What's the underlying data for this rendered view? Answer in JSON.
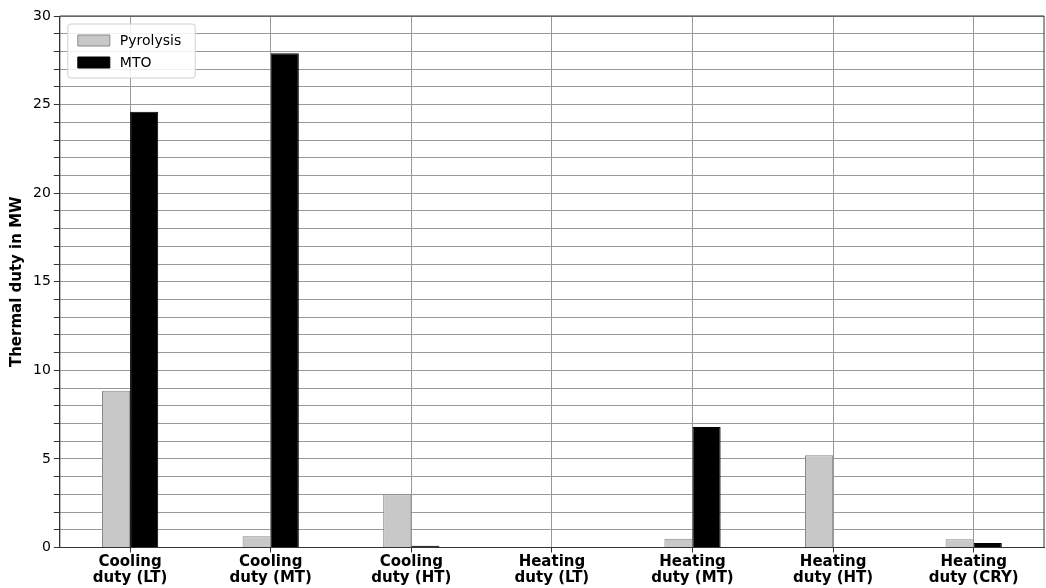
{
  "chart_data": {
    "type": "bar",
    "ylabel": "Thermal duty in MW",
    "categories": [
      "Cooling duty (LT)",
      "Cooling duty (MT)",
      "Cooling duty (HT)",
      "Heating duty (LT)",
      "Heating duty (MT)",
      "Heating duty (HT)",
      "Heating duty (CRY)"
    ],
    "series": [
      {
        "name": "Pyrolysis",
        "color": "#c8c8c8",
        "values": [
          8.85,
          0.63,
          3.0,
          null,
          0.5,
          5.2,
          0.47
        ]
      },
      {
        "name": "MTO",
        "color": "#000000",
        "values": [
          24.6,
          27.9,
          0.1,
          0,
          6.8,
          0,
          0.25
        ]
      }
    ],
    "ylim": [
      0,
      30
    ],
    "yticks": [
      0,
      {
        "value": 1,
        "label": null
      },
      {
        "value": 2,
        "label": null
      },
      {
        "value": 3,
        "label": null
      },
      {
        "value": 4,
        "label": null
      },
      5,
      {
        "value": 6,
        "label": null
      },
      {
        "value": 7,
        "label": null
      },
      {
        "value": 8,
        "label": null
      },
      {
        "value": 9,
        "label": null
      },
      10,
      {
        "value": 11,
        "label": null
      },
      {
        "value": 12,
        "label": null
      },
      {
        "value": 13,
        "label": null
      },
      {
        "value": 14,
        "label": null
      },
      15,
      {
        "value": 16,
        "label": null
      },
      {
        "value": 17,
        "label": null
      },
      {
        "value": 18,
        "label": null
      },
      {
        "value": 19,
        "label": null
      },
      20,
      {
        "value": 21,
        "label": null
      },
      {
        "value": 22,
        "label": null
      },
      {
        "value": 23,
        "label": null
      },
      {
        "value": 24,
        "label": null
      },
      25,
      {
        "value": 26,
        "label": null
      },
      {
        "value": 27,
        "label": null
      },
      {
        "value": 28,
        "label": null
      },
      {
        "value": 29,
        "label": null
      },
      30
    ],
    "grid": true,
    "legend": "top left"
  }
}
